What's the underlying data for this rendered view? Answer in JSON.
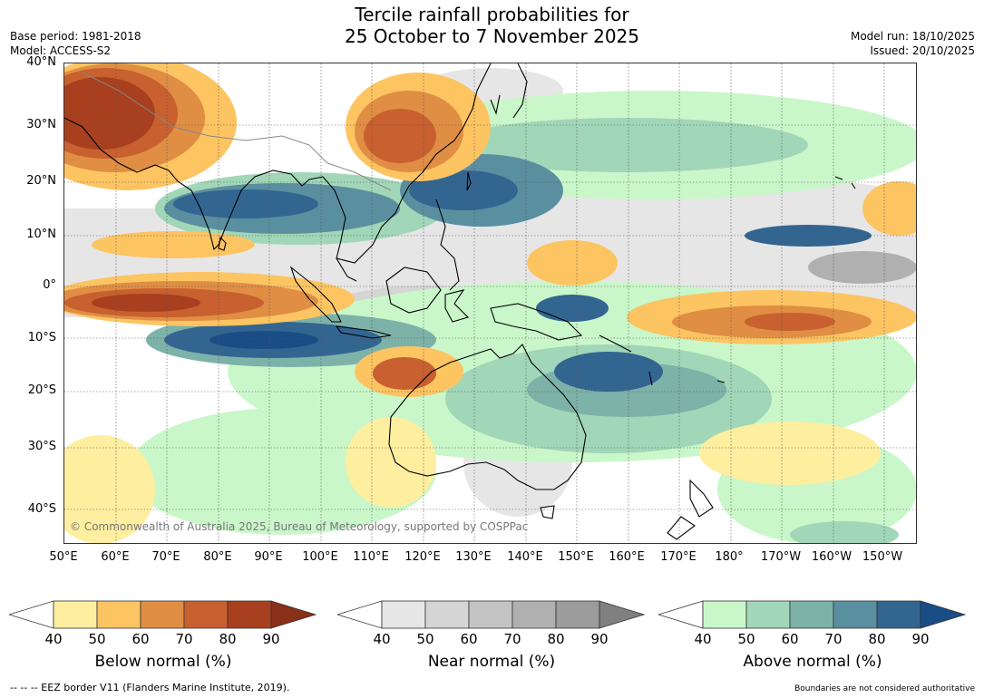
{
  "title": {
    "line1": "Tercile rainfall probabilities for",
    "line2": "25 October to 7 November 2025"
  },
  "meta": {
    "base_period": "Base period: 1981-2018",
    "model": "Model: ACCESS-S2",
    "model_run": "Model run: 18/10/2025",
    "issued": "Issued: 20/10/2025"
  },
  "map": {
    "copyright": "© Commonwealth of Australia 2025, Bureau of Meteorology, supported by COSPPac",
    "lat_labels": [
      "40°N",
      "30°N",
      "20°N",
      "10°N",
      "0°",
      "10°S",
      "20°S",
      "30°S",
      "40°S"
    ],
    "lon_labels": [
      "50°E",
      "60°E",
      "70°E",
      "80°E",
      "90°E",
      "100°E",
      "110°E",
      "120°E",
      "130°E",
      "140°E",
      "150°E",
      "160°E",
      "170°E",
      "180°",
      "170°W",
      "160°W",
      "150°W"
    ]
  },
  "legends": [
    {
      "caption": "Below normal (%)",
      "ticks": [
        "40",
        "50",
        "60",
        "70",
        "80",
        "90"
      ],
      "colors": [
        "#ffffff",
        "#fdeea0",
        "#fdc462",
        "#e08e44",
        "#c8602f",
        "#a8401f",
        "#8a2f18"
      ]
    },
    {
      "caption": "Near normal (%)",
      "ticks": [
        "40",
        "50",
        "60",
        "70",
        "80",
        "90"
      ],
      "colors": [
        "#ffffff",
        "#e6e6e6",
        "#d5d5d5",
        "#c4c4c4",
        "#b0b0b0",
        "#9c9c9c",
        "#808080"
      ]
    },
    {
      "caption": "Above normal (%)",
      "ticks": [
        "40",
        "50",
        "60",
        "70",
        "80",
        "90"
      ],
      "colors": [
        "#ffffff",
        "#c9f7c9",
        "#a1d6b8",
        "#7db2a9",
        "#5a8fa0",
        "#336591",
        "#1a4c86"
      ]
    }
  ],
  "footer": {
    "eez": "--  --  -- EEZ border V11 (Flanders Marine Institute, 2019).",
    "disclaimer": "Boundaries are not considered authoritative"
  }
}
